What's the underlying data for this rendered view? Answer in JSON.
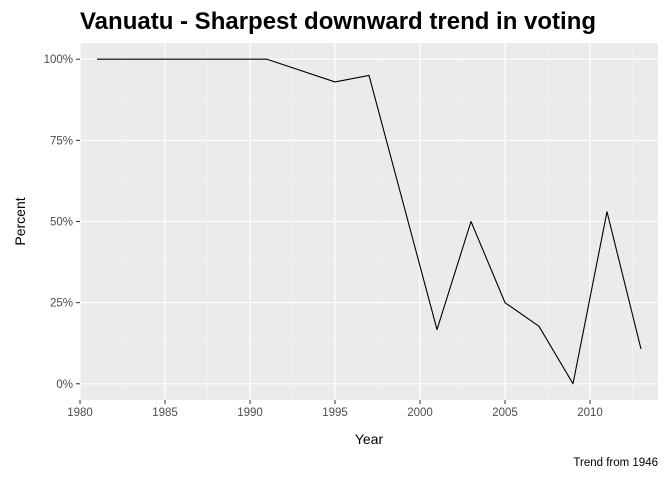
{
  "chart_data": {
    "type": "line",
    "title": "Vanuatu - Sharpest downward trend in voting",
    "xlabel": "Year",
    "ylabel": "Percent",
    "caption": "Trend from 1946",
    "xlim": [
      1980,
      2014
    ],
    "ylim": [
      -0.05,
      1.05
    ],
    "x_ticks": [
      1980,
      1985,
      1990,
      1995,
      2000,
      2005,
      2010
    ],
    "x_tick_labels": [
      "1980",
      "1985",
      "1990",
      "1995",
      "2000",
      "2005",
      "2010"
    ],
    "y_ticks": [
      0,
      0.25,
      0.5,
      0.75,
      1.0
    ],
    "y_tick_labels": [
      "0%",
      "25%",
      "50%",
      "75%",
      "100%"
    ],
    "grid": true,
    "series": [
      {
        "color": "#000000",
        "x": [
          1981,
          1983,
          1987,
          1991,
          1995,
          1997,
          2001,
          2003,
          2005,
          2007,
          2009,
          2011,
          2013
        ],
        "y": [
          1.0,
          1.0,
          1.0,
          1.0,
          0.93,
          0.95,
          0.167,
          0.5,
          0.25,
          0.177,
          0.0,
          0.53,
          0.107
        ]
      }
    ]
  },
  "colors": {
    "panel_background": "#ebebeb",
    "grid_major": "#ffffff",
    "grid_minor": "#f5f5f5",
    "line": "#000000"
  }
}
